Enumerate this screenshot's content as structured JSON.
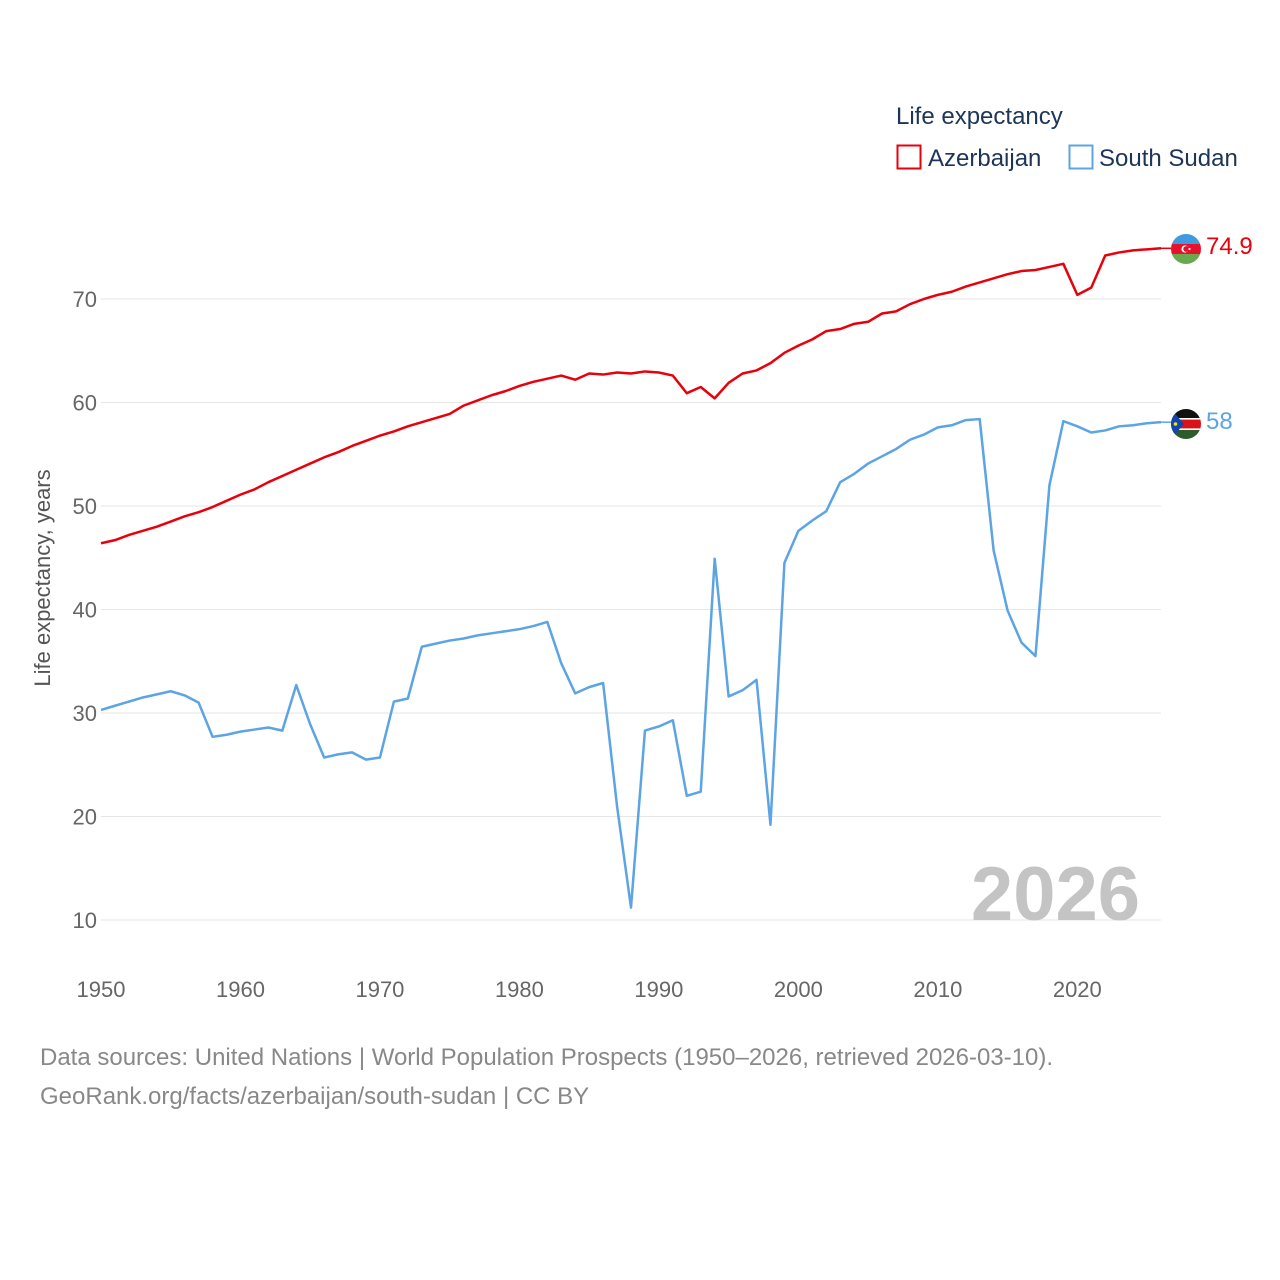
{
  "chart_data": {
    "type": "line",
    "ylabel": "Life expectancy, years",
    "xlim": [
      1950,
      2026
    ],
    "ylim": [
      5,
      80
    ],
    "yticks": [
      10,
      20,
      30,
      40,
      50,
      60,
      70
    ],
    "xticks": [
      1950,
      1960,
      1970,
      1980,
      1990,
      2000,
      2010,
      2020
    ],
    "legend_title": "Life expectancy",
    "watermark_year": "2026",
    "series": [
      {
        "name": "Azerbaijan",
        "color": "#e8000b",
        "end_label": "74.9",
        "flag": "azerbaijan-flag",
        "x": [
          1950,
          1951,
          1952,
          1953,
          1954,
          1955,
          1956,
          1957,
          1958,
          1959,
          1960,
          1961,
          1962,
          1963,
          1964,
          1965,
          1966,
          1967,
          1968,
          1969,
          1970,
          1971,
          1972,
          1973,
          1974,
          1975,
          1976,
          1977,
          1978,
          1979,
          1980,
          1981,
          1982,
          1983,
          1984,
          1985,
          1986,
          1987,
          1988,
          1989,
          1990,
          1991,
          1992,
          1993,
          1994,
          1995,
          1996,
          1997,
          1998,
          1999,
          2000,
          2001,
          2002,
          2003,
          2004,
          2005,
          2006,
          2007,
          2008,
          2009,
          2010,
          2011,
          2012,
          2013,
          2014,
          2015,
          2016,
          2017,
          2018,
          2019,
          2020,
          2021,
          2022,
          2023,
          2024,
          2025,
          2026
        ],
        "values": [
          46.4,
          46.7,
          47.2,
          47.6,
          48.0,
          48.5,
          49.0,
          49.4,
          49.9,
          50.5,
          51.1,
          51.6,
          52.3,
          52.9,
          53.5,
          54.1,
          54.7,
          55.2,
          55.8,
          56.3,
          56.8,
          57.2,
          57.7,
          58.1,
          58.5,
          58.9,
          59.7,
          60.2,
          60.7,
          61.1,
          61.6,
          62.0,
          62.3,
          62.6,
          62.2,
          62.8,
          62.7,
          62.9,
          62.8,
          63.0,
          62.9,
          62.6,
          60.9,
          61.5,
          60.4,
          61.9,
          62.8,
          63.1,
          63.8,
          64.8,
          65.5,
          66.1,
          66.9,
          67.1,
          67.6,
          67.8,
          68.6,
          68.8,
          69.5,
          70.0,
          70.4,
          70.7,
          71.2,
          71.6,
          72.0,
          72.4,
          72.7,
          72.8,
          73.1,
          73.4,
          70.4,
          71.1,
          74.2,
          74.5,
          74.7,
          74.8,
          74.9
        ]
      },
      {
        "name": "South Sudan",
        "color": "#5ca4e3",
        "end_label": "58",
        "flag": "south-sudan-flag",
        "x": [
          1950,
          1951,
          1952,
          1953,
          1954,
          1955,
          1956,
          1957,
          1958,
          1959,
          1960,
          1961,
          1962,
          1963,
          1964,
          1965,
          1966,
          1967,
          1968,
          1969,
          1970,
          1971,
          1972,
          1973,
          1974,
          1975,
          1976,
          1977,
          1978,
          1979,
          1980,
          1981,
          1982,
          1983,
          1984,
          1985,
          1986,
          1987,
          1988,
          1989,
          1990,
          1991,
          1992,
          1993,
          1994,
          1995,
          1996,
          1997,
          1998,
          1999,
          2000,
          2001,
          2002,
          2003,
          2004,
          2005,
          2006,
          2007,
          2008,
          2009,
          2010,
          2011,
          2012,
          2013,
          2014,
          2015,
          2016,
          2017,
          2018,
          2019,
          2020,
          2021,
          2022,
          2023,
          2024,
          2025,
          2026
        ],
        "values": [
          30.3,
          30.7,
          31.1,
          31.5,
          31.8,
          32.1,
          31.7,
          31.0,
          27.7,
          27.9,
          28.2,
          28.4,
          28.6,
          28.3,
          32.7,
          28.9,
          25.7,
          26.0,
          26.2,
          25.5,
          25.7,
          31.1,
          31.4,
          36.4,
          36.7,
          37.0,
          37.2,
          37.5,
          37.7,
          37.9,
          38.1,
          38.4,
          38.8,
          34.8,
          31.9,
          32.5,
          32.9,
          21.0,
          11.2,
          28.3,
          28.7,
          29.3,
          22.0,
          22.4,
          44.9,
          31.6,
          32.2,
          33.2,
          19.2,
          44.5,
          47.6,
          48.6,
          49.5,
          52.3,
          53.1,
          54.1,
          54.8,
          55.5,
          56.4,
          56.9,
          57.6,
          57.8,
          58.3,
          58.4,
          45.7,
          39.9,
          36.8,
          35.5,
          52.0,
          58.2,
          57.7,
          57.1,
          57.3,
          57.7,
          57.8,
          58.0,
          58.1
        ]
      }
    ]
  },
  "footer": {
    "sources": "Data sources: United Nations | World Population Prospects (1950–2026, retrieved 2026-03-10).",
    "credit": "GeoRank.org/facts/azerbaijan/south-sudan | CC BY"
  }
}
